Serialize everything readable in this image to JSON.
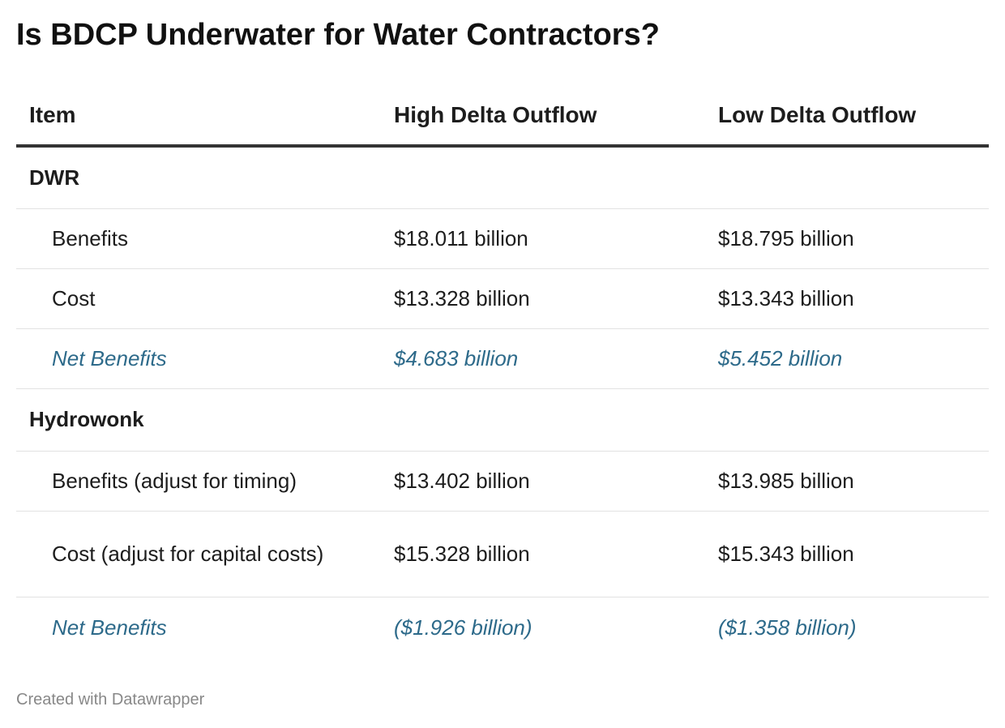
{
  "title": "Is BDCP Underwater for Water Contractors?",
  "footer": "Created with Datawrapper",
  "chart_data": {
    "type": "table",
    "columns": [
      "Item",
      "High Delta Outflow",
      "Low Delta Outflow"
    ],
    "groups": [
      {
        "name": "DWR",
        "rows": [
          {
            "item": "Benefits",
            "high": "$18.011 billion",
            "low": "$18.795 billion"
          },
          {
            "item": "Cost",
            "high": "$13.328 billion",
            "low": "$13.343 billion"
          },
          {
            "item": "Net Benefits",
            "high": "$4.683 billion",
            "low": "$5.452 billion"
          }
        ]
      },
      {
        "name": "Hydrowonk",
        "rows": [
          {
            "item": "Benefits (adjust for timing)",
            "high": "$13.402 billion",
            "low": "$13.985 billion"
          },
          {
            "item": "Cost (adjust for capital costs)",
            "high": "$15.328 billion",
            "low": "$15.343 billion"
          },
          {
            "item": "Net Benefits",
            "high": "($1.926 billion)",
            "low": "($1.358 billion)"
          }
        ]
      }
    ],
    "net_color": "#2d6a8a",
    "header_rule_color": "#333333",
    "row_rule_color": "#e2e2e2"
  }
}
